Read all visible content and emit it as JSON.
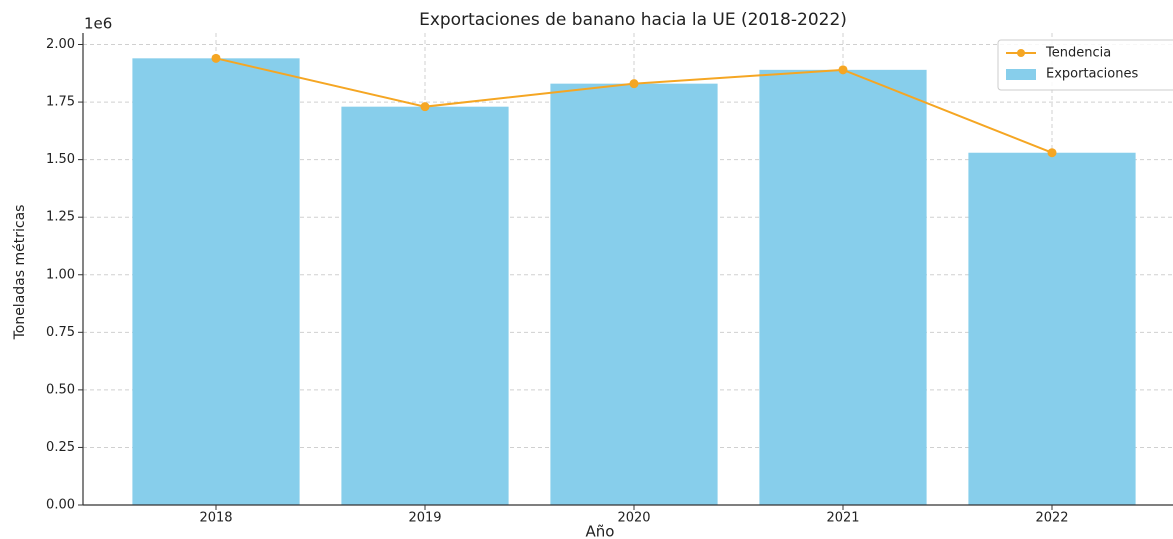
{
  "chart_data": {
    "type": "bar_line",
    "title": "Exportaciones de banano hacia la UE (2018-2022)",
    "x_label": "Año",
    "y_label": "Toneladas métricas",
    "y_offset_label": "1e6",
    "categories": [
      "2018",
      "2019",
      "2020",
      "2021",
      "2022"
    ],
    "series": [
      {
        "name": "Tendencia",
        "type": "line",
        "color": "#f5a623",
        "values": [
          1.94,
          1.73,
          1.83,
          1.89,
          1.53
        ]
      },
      {
        "name": "Exportaciones",
        "type": "bar",
        "color": "#87ceeb",
        "values": [
          1.94,
          1.73,
          1.83,
          1.89,
          1.53
        ]
      }
    ],
    "ylim": [
      0,
      2.05
    ],
    "yticks": [
      {
        "value": 0,
        "label": "0.00"
      },
      0.25,
      {
        "value": 0.5,
        "label": "0.50"
      },
      0.75,
      {
        "value": 1,
        "label": "1.00"
      },
      1.25,
      {
        "value": 1.5,
        "label": "1.50"
      },
      1.75,
      {
        "value": 2,
        "label": "2.00"
      }
    ],
    "grid": true,
    "legend": "upper right"
  }
}
